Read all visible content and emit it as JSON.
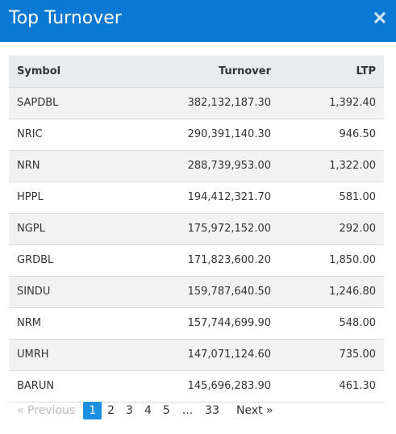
{
  "modal": {
    "title": "Top Turnover",
    "close_icon": "close-icon"
  },
  "table": {
    "headers": {
      "symbol": "Symbol",
      "turnover": "Turnover",
      "ltp": "LTP"
    },
    "rows": [
      {
        "symbol": "SAPDBL",
        "turnover": "382,132,187.30",
        "ltp": "1,392.40"
      },
      {
        "symbol": "NRIC",
        "turnover": "290,391,140.30",
        "ltp": "946.50"
      },
      {
        "symbol": "NRN",
        "turnover": "288,739,953.00",
        "ltp": "1,322.00"
      },
      {
        "symbol": "HPPL",
        "turnover": "194,412,321.70",
        "ltp": "581.00"
      },
      {
        "symbol": "NGPL",
        "turnover": "175,972,152.00",
        "ltp": "292.00"
      },
      {
        "symbol": "GRDBL",
        "turnover": "171,823,600.20",
        "ltp": "1,850.00"
      },
      {
        "symbol": "SINDU",
        "turnover": "159,787,640.50",
        "ltp": "1,246.80"
      },
      {
        "symbol": "NRM",
        "turnover": "157,744,699.90",
        "ltp": "548.00"
      },
      {
        "symbol": "UMRH",
        "turnover": "147,071,124.60",
        "ltp": "735.00"
      },
      {
        "symbol": "BARUN",
        "turnover": "145,696,283.90",
        "ltp": "461.30"
      }
    ]
  },
  "pagination": {
    "previous": "« Previous",
    "pages": [
      "1",
      "2",
      "3",
      "4",
      "5"
    ],
    "current_page": "1",
    "ellipsis": "...",
    "last_page": "33",
    "next": "Next »"
  },
  "colors": {
    "header_bg": "#0b78d4",
    "active_page": "#1b8fe0"
  }
}
